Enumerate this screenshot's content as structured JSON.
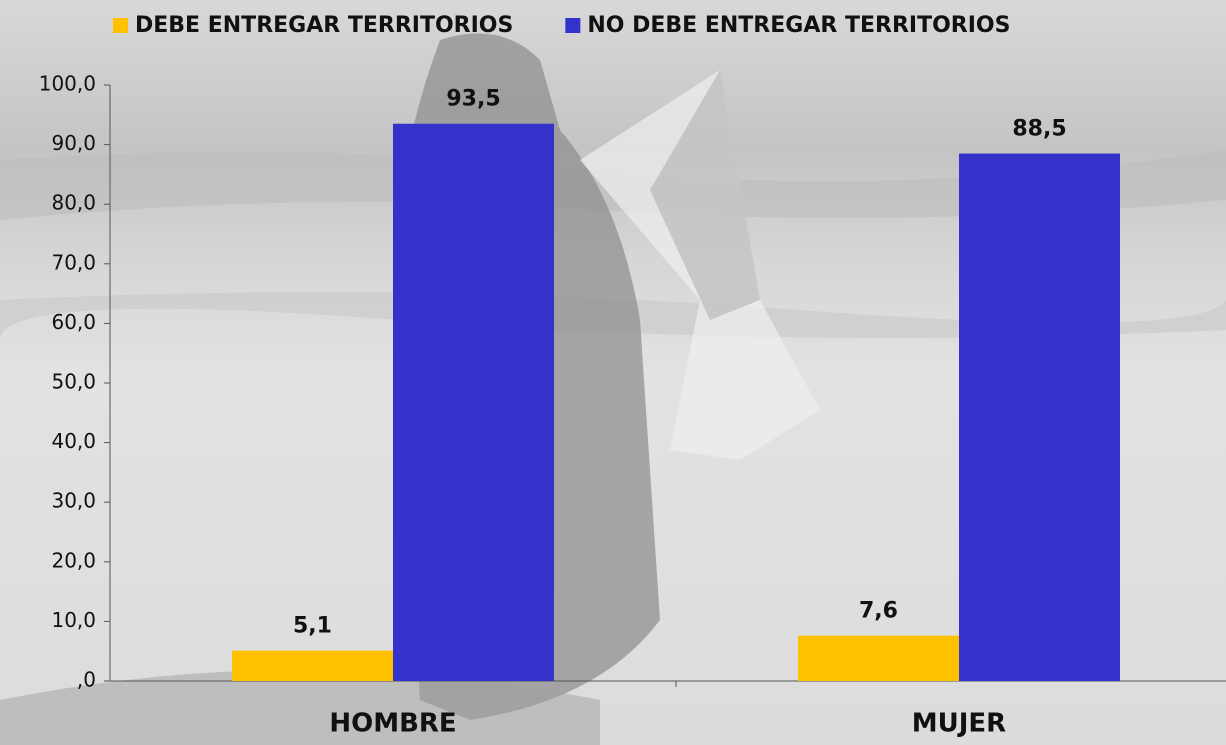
{
  "chart_data": {
    "type": "bar",
    "categories": [
      "HOMBRE",
      "MUJER"
    ],
    "series": [
      {
        "name": "DEBE ENTREGAR TERRITORIOS",
        "color": "#FFC000",
        "values": [
          5.1,
          7.6
        ],
        "value_labels": [
          "5,1",
          "7,6"
        ]
      },
      {
        "name": "NO DEBE ENTREGAR TERRITORIOS",
        "color": "#3333CC",
        "values": [
          93.5,
          88.5
        ],
        "value_labels": [
          "93,5",
          "88,5"
        ]
      }
    ],
    "ylim": [
      0,
      100
    ],
    "yticks": [
      {
        "value": 0,
        "label": ",0"
      },
      {
        "value": 10,
        "label": "10,0"
      },
      {
        "value": 20,
        "label": "20,0"
      },
      {
        "value": 30,
        "label": "30,0"
      },
      {
        "value": 40,
        "label": "40,0"
      },
      {
        "value": 50,
        "label": "50,0"
      },
      {
        "value": 60,
        "label": "60,0"
      },
      {
        "value": 70,
        "label": "70,0"
      },
      {
        "value": 80,
        "label": "80,0"
      },
      {
        "value": 90,
        "label": "90,0"
      },
      {
        "value": 100,
        "label": "100,0"
      }
    ],
    "legend": "top"
  }
}
